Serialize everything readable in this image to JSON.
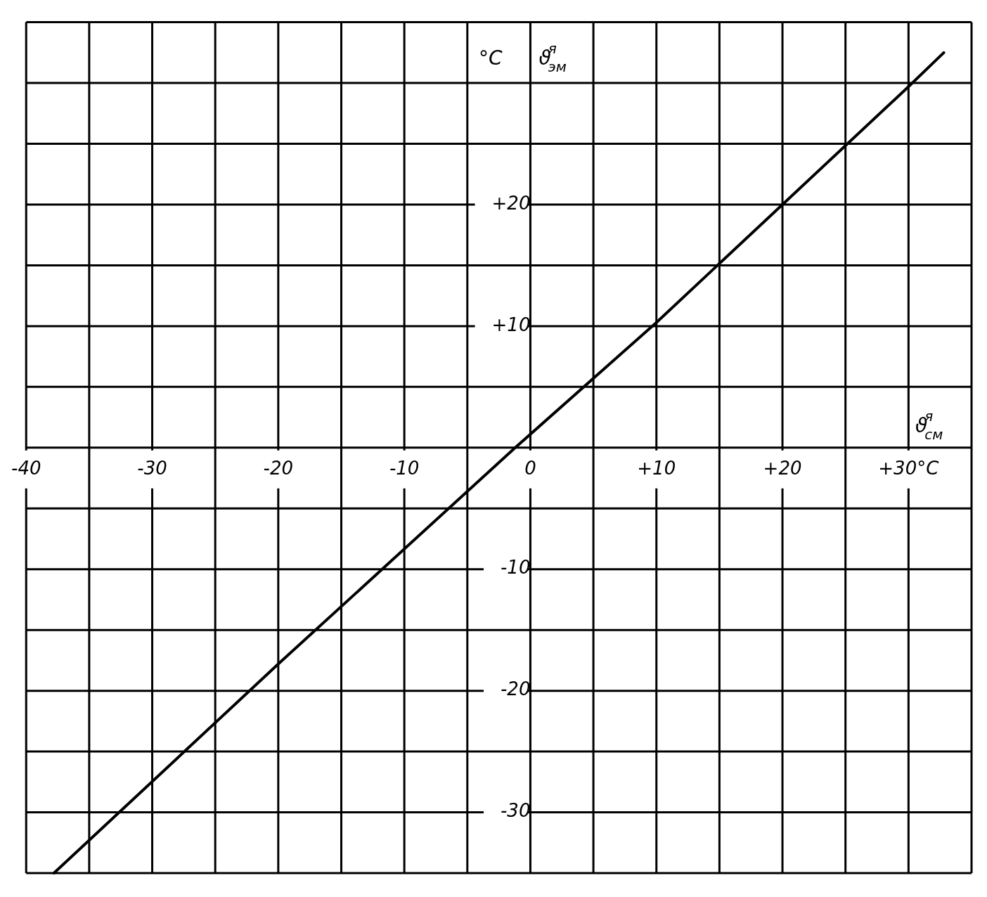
{
  "chart_data": {
    "type": "line",
    "xlabel": "ϑ$^{я}$$_{см}$",
    "ylabel": "ϑ$^{я}$$_{эм}$",
    "annotations": [
      "°C"
    ],
    "series": [
      {
        "color": "#000000",
        "x": [
          -37.8,
          -20,
          -1.2,
          10,
          20,
          30,
          32.8
        ],
        "values": [
          -35,
          -17.8,
          0,
          10.3,
          20,
          29.7,
          32.5
        ]
      }
    ],
    "xlim": [
      -40,
      35
    ],
    "ylim": [
      -35,
      35
    ],
    "xticks": [
      {
        "value": -40,
        "label": "-40"
      },
      {
        "value": -35,
        "label": null
      },
      {
        "value": -30,
        "label": "-30"
      },
      {
        "value": -25,
        "label": null
      },
      {
        "value": -20,
        "label": "-20"
      },
      {
        "value": -15,
        "label": null
      },
      {
        "value": -10,
        "label": "-10"
      },
      {
        "value": -5,
        "label": null
      },
      {
        "value": 0,
        "label": "0"
      },
      {
        "value": 5,
        "label": null
      },
      {
        "value": 10,
        "label": "+10"
      },
      {
        "value": 15,
        "label": null
      },
      {
        "value": 20,
        "label": "+20"
      },
      {
        "value": 25,
        "label": null
      },
      {
        "value": 30,
        "label": "+30°C"
      },
      {
        "value": 35,
        "label": null
      }
    ],
    "yticks": [
      {
        "value": -35,
        "label": null
      },
      {
        "value": -30,
        "label": "-30"
      },
      {
        "value": -25,
        "label": null
      },
      {
        "value": -20,
        "label": "-20"
      },
      {
        "value": -15,
        "label": null
      },
      {
        "value": -10,
        "label": "-10"
      },
      {
        "value": -5,
        "label": null
      },
      {
        "value": 0,
        "label": null
      },
      {
        "value": 5,
        "label": null
      },
      {
        "value": 10,
        "label": "+10"
      },
      {
        "value": 15,
        "label": null
      },
      {
        "value": 20,
        "label": "+20"
      },
      {
        "value": 25,
        "label": null
      },
      {
        "value": 30,
        "label": null
      },
      {
        "value": 35,
        "label": null
      }
    ],
    "grid": true,
    "legend": false,
    "marker": "none",
    "line_style": "solid"
  }
}
